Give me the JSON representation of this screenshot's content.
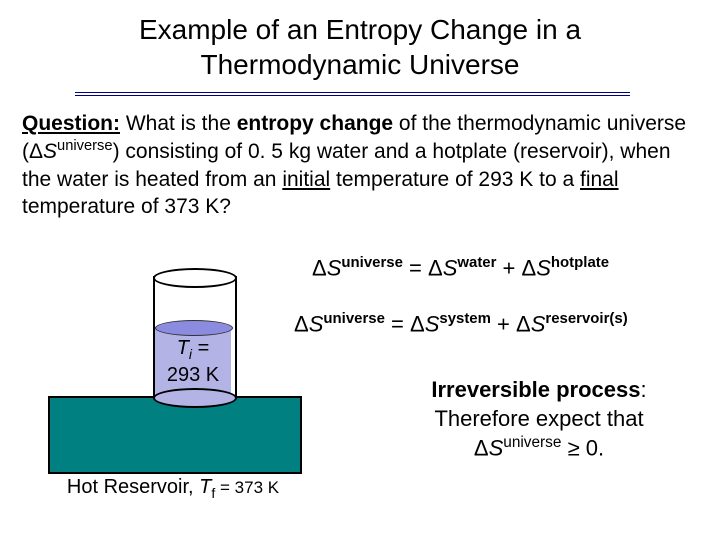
{
  "title": {
    "line1": "Example of an Entropy Change in a",
    "line2": "Thermodynamic Universe",
    "underline_color": "#000080"
  },
  "question": {
    "label": "Question:",
    "t1": "  What is the ",
    "bold1": "entropy change",
    "t2": " of the thermodynamic universe (",
    "sym1": "Δ",
    "var1": "S",
    "sup1": "universe",
    "t3": ") consisting of 0. 5 kg water and a hotplate (reservoir), when the water is heated from an ",
    "u1": "initial",
    "t4": " temperature of 293 K to a ",
    "u2": "final",
    "t5": " temperature of 373 K?"
  },
  "eq1": {
    "lhs_super": "universe",
    "rhs1_super": "water",
    "rhs2_super": "hotplate",
    "delta": "Δ",
    "S": "S",
    "eq": " = ",
    "plus": " + "
  },
  "eq2": {
    "lhs_super": "universe",
    "rhs1_super": "system",
    "rhs2_super": "reservoir(s)",
    "delta": "Δ",
    "S": "S",
    "eq": " = ",
    "plus": " + "
  },
  "irrev": {
    "headline": "Irreversible process",
    "line2": "Therefore expect that",
    "delta": "Δ",
    "S": "S",
    "super": "universe",
    "ge": " ≥ 0."
  },
  "diagram": {
    "Ti_label": "T",
    "Ti_sub": "i",
    "Ti_eq": " =",
    "Ti_val": "293 K",
    "reservoir_text1": "Hot Reservoir, ",
    "Tf_label": "T",
    "Tf_sub": "f",
    "Tf_rest": " = 373 K",
    "reservoir_color": "#008080",
    "water_color": "#b3b3e6",
    "water_top_color": "#8b8be0"
  }
}
